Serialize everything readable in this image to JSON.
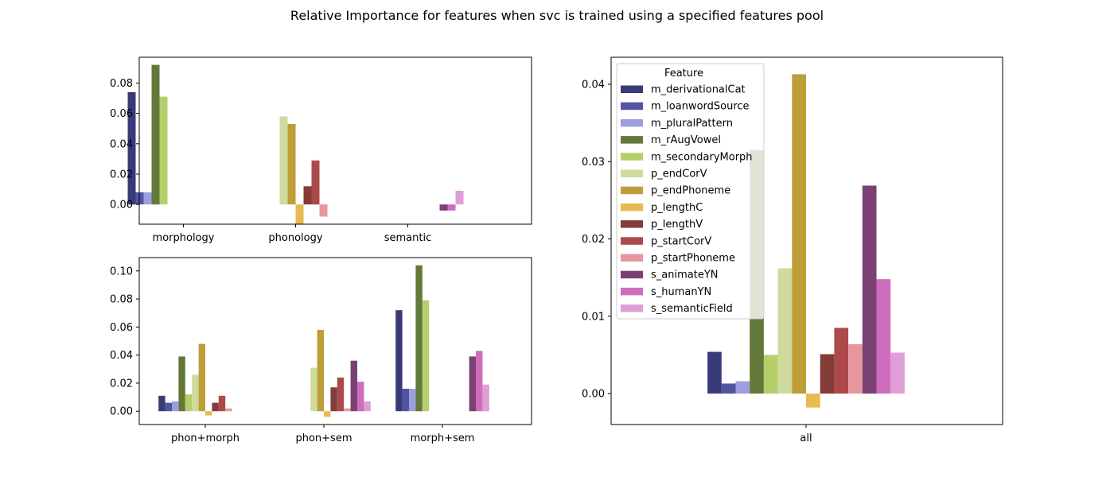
{
  "figure": {
    "title": "Relative Importance for features when svc is trained using a specified features pool"
  },
  "colors": {
    "m_derivationalCat": "#393b79",
    "m_loanwordSource": "#5254a3",
    "m_pluralPattern": "#9c9ede",
    "m_rAugVowel": "#637939",
    "m_secondaryMorph": "#b5cf6b",
    "p_endCorV": "#cedb9c",
    "p_endPhoneme": "#bd9e39",
    "p_lengthC": "#e7ba52",
    "p_lengthV": "#843c39",
    "p_startCorV": "#ad494a",
    "p_startPhoneme": "#e7969c",
    "s_animateYN": "#7b4173",
    "s_humanYN": "#ce6dbd",
    "s_semanticField": "#de9ed6"
  },
  "chart_data": [
    {
      "type": "bar",
      "categories": [
        "morphology",
        "phonology",
        "semantic"
      ],
      "ylim": [
        -0.013,
        0.097
      ],
      "yticks": [
        "0.00",
        "0.02",
        "0.04",
        "0.06",
        "0.08"
      ],
      "series": [
        {
          "name": "m_derivationalCat",
          "values": [
            0.074,
            null,
            null
          ]
        },
        {
          "name": "m_loanwordSource",
          "values": [
            0.008,
            null,
            null
          ]
        },
        {
          "name": "m_pluralPattern",
          "values": [
            0.008,
            null,
            null
          ]
        },
        {
          "name": "m_rAugVowel",
          "values": [
            0.092,
            null,
            null
          ]
        },
        {
          "name": "m_secondaryMorph",
          "values": [
            0.071,
            null,
            null
          ]
        },
        {
          "name": "p_endCorV",
          "values": [
            null,
            0.058,
            null
          ]
        },
        {
          "name": "p_endPhoneme",
          "values": [
            null,
            0.053,
            null
          ]
        },
        {
          "name": "p_lengthC",
          "values": [
            null,
            -0.013,
            null
          ]
        },
        {
          "name": "p_lengthV",
          "values": [
            null,
            0.012,
            null
          ]
        },
        {
          "name": "p_startCorV",
          "values": [
            null,
            0.029,
            null
          ]
        },
        {
          "name": "p_startPhoneme",
          "values": [
            null,
            -0.008,
            null
          ]
        },
        {
          "name": "s_animateYN",
          "values": [
            null,
            null,
            -0.004
          ]
        },
        {
          "name": "s_humanYN",
          "values": [
            null,
            null,
            -0.004
          ]
        },
        {
          "name": "s_semanticField",
          "values": [
            null,
            null,
            0.009
          ]
        }
      ]
    },
    {
      "type": "bar",
      "categories": [
        "phon+morph",
        "phon+sem",
        "morph+sem"
      ],
      "ylim": [
        -0.0095,
        0.1095
      ],
      "yticks": [
        "0.00",
        "0.02",
        "0.04",
        "0.06",
        "0.08",
        "0.10"
      ],
      "series": [
        {
          "name": "m_derivationalCat",
          "values": [
            0.011,
            null,
            0.072
          ]
        },
        {
          "name": "m_loanwordSource",
          "values": [
            0.006,
            null,
            0.016
          ]
        },
        {
          "name": "m_pluralPattern",
          "values": [
            0.007,
            null,
            0.016
          ]
        },
        {
          "name": "m_rAugVowel",
          "values": [
            0.039,
            null,
            0.104
          ]
        },
        {
          "name": "m_secondaryMorph",
          "values": [
            0.012,
            null,
            0.079
          ]
        },
        {
          "name": "p_endCorV",
          "values": [
            0.026,
            0.031,
            null
          ]
        },
        {
          "name": "p_endPhoneme",
          "values": [
            0.048,
            0.058,
            null
          ]
        },
        {
          "name": "p_lengthC",
          "values": [
            -0.003,
            -0.004,
            null
          ]
        },
        {
          "name": "p_lengthV",
          "values": [
            0.006,
            0.017,
            null
          ]
        },
        {
          "name": "p_startCorV",
          "values": [
            0.011,
            0.024,
            null
          ]
        },
        {
          "name": "p_startPhoneme",
          "values": [
            0.002,
            0.002,
            null
          ]
        },
        {
          "name": "s_animateYN",
          "values": [
            null,
            0.036,
            0.039
          ]
        },
        {
          "name": "s_humanYN",
          "values": [
            null,
            0.021,
            0.043
          ]
        },
        {
          "name": "s_semanticField",
          "values": [
            null,
            0.007,
            0.019
          ]
        }
      ]
    },
    {
      "type": "bar",
      "categories": [
        "all"
      ],
      "ylim": [
        -0.004,
        0.0435
      ],
      "yticks": [
        "0.00",
        "0.01",
        "0.02",
        "0.03",
        "0.04"
      ],
      "legend": {
        "title": "Feature",
        "position": "upper left"
      },
      "series": [
        {
          "name": "m_derivationalCat",
          "values": [
            0.0054
          ]
        },
        {
          "name": "m_loanwordSource",
          "values": [
            0.0013
          ]
        },
        {
          "name": "m_pluralPattern",
          "values": [
            0.0016
          ]
        },
        {
          "name": "m_rAugVowel",
          "values": [
            0.0315
          ]
        },
        {
          "name": "m_secondaryMorph",
          "values": [
            0.005
          ]
        },
        {
          "name": "p_endCorV",
          "values": [
            0.0162
          ]
        },
        {
          "name": "p_endPhoneme",
          "values": [
            0.0413
          ]
        },
        {
          "name": "p_lengthC",
          "values": [
            -0.0018
          ]
        },
        {
          "name": "p_lengthV",
          "values": [
            0.0051
          ]
        },
        {
          "name": "p_startCorV",
          "values": [
            0.0085
          ]
        },
        {
          "name": "p_startPhoneme",
          "values": [
            0.0064
          ]
        },
        {
          "name": "s_animateYN",
          "values": [
            0.0269
          ]
        },
        {
          "name": "s_humanYN",
          "values": [
            0.0148
          ]
        },
        {
          "name": "s_semanticField",
          "values": [
            0.0053
          ]
        }
      ]
    }
  ]
}
